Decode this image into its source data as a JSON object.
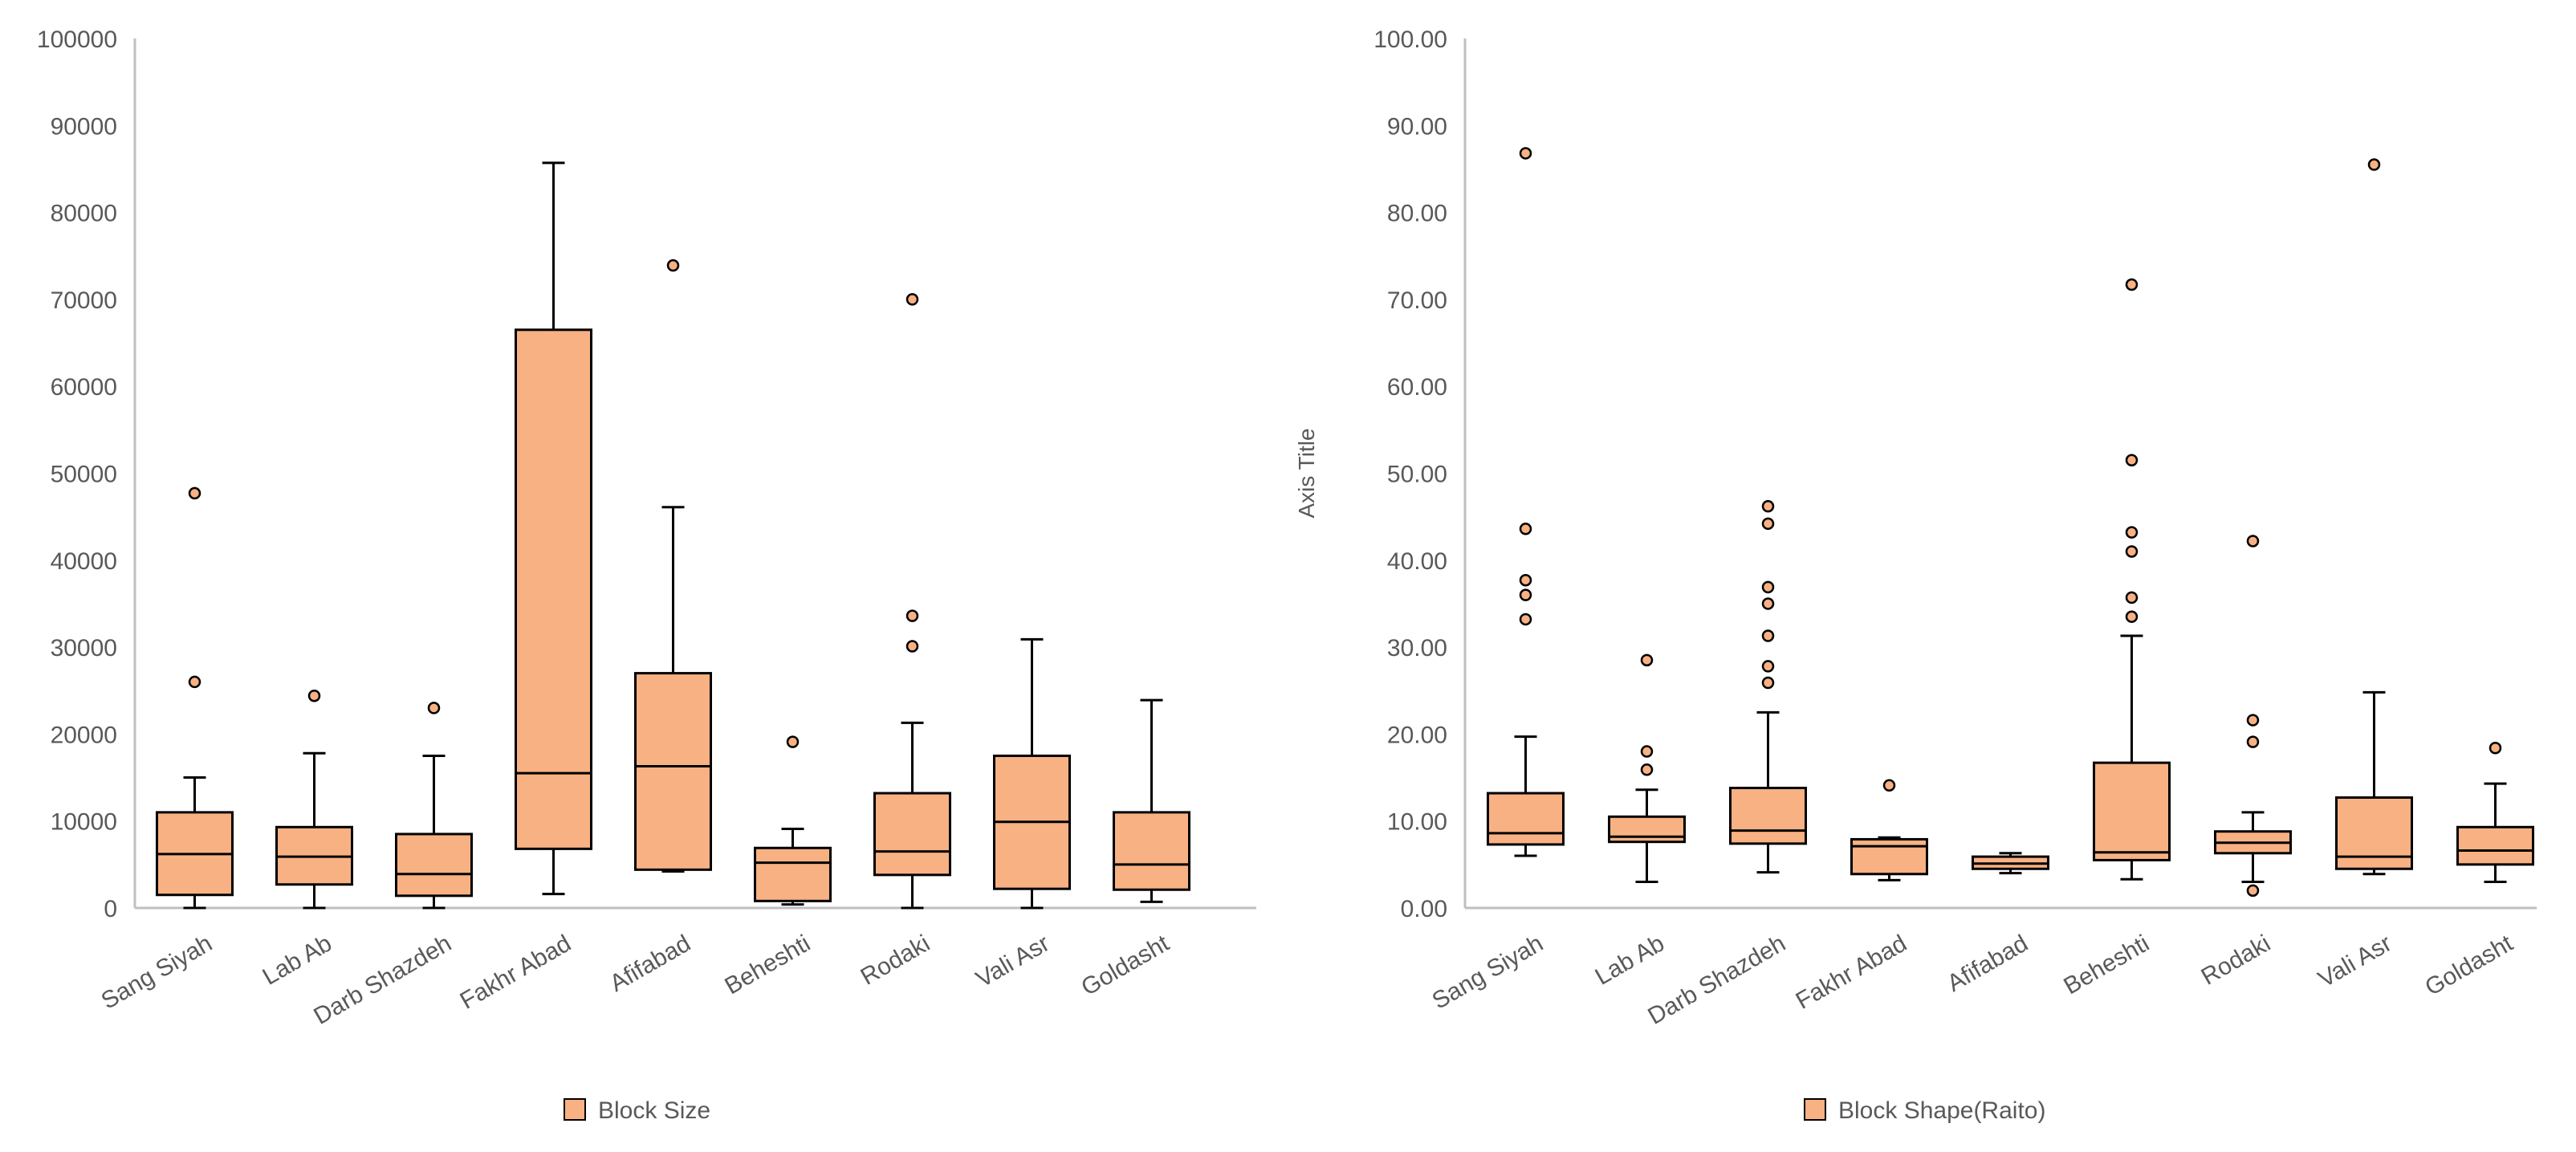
{
  "chart_data": [
    {
      "type": "box",
      "categories": [
        "Sang Siyah",
        "Lab Ab",
        "Darb Shazdeh",
        "Fakhr Abad",
        "Afifabad",
        "Beheshti",
        "Rodaki",
        "Vali Asr",
        "Goldasht"
      ],
      "yticks": [
        "0",
        "10000",
        "20000",
        "30000",
        "40000",
        "50000",
        "60000",
        "70000",
        "80000",
        "90000",
        "100000"
      ],
      "ylim": [
        0,
        100000
      ],
      "ylabel": "",
      "legend": {
        "position": "bottom",
        "entries": [
          "Block Size"
        ]
      },
      "series": [
        {
          "name": "Block Size",
          "color": "#F8B183",
          "boxes": [
            {
              "min": 0,
              "q1": 1500,
              "median": 6200,
              "q3": 11000,
              "max": 15000,
              "outliers": [
                26000,
                47700
              ]
            },
            {
              "min": 0,
              "q1": 2700,
              "median": 5900,
              "q3": 9300,
              "max": 17800,
              "outliers": [
                24400
              ]
            },
            {
              "min": 0,
              "q1": 1400,
              "median": 3900,
              "q3": 8500,
              "max": 17500,
              "outliers": [
                23000
              ]
            },
            {
              "min": 1600,
              "q1": 6800,
              "median": 15500,
              "q3": 66500,
              "max": 85700,
              "outliers": []
            },
            {
              "min": 4200,
              "q1": 4400,
              "median": 16300,
              "q3": 27000,
              "max": 46100,
              "outliers": [
                73900
              ]
            },
            {
              "min": 400,
              "q1": 800,
              "median": 5200,
              "q3": 6900,
              "max": 9100,
              "outliers": [
                19100
              ]
            },
            {
              "min": 0,
              "q1": 3800,
              "median": 6500,
              "q3": 13200,
              "max": 21300,
              "outliers": [
                30100,
                33600,
                70000
              ]
            },
            {
              "min": 0,
              "q1": 2200,
              "median": 9900,
              "q3": 17500,
              "max": 30900,
              "outliers": []
            },
            {
              "min": 700,
              "q1": 2100,
              "median": 5000,
              "q3": 11000,
              "max": 23900,
              "outliers": []
            }
          ]
        }
      ]
    },
    {
      "type": "box",
      "categories": [
        "Sang Siyah",
        "Lab Ab",
        "Darb Shazdeh",
        "Fakhr Abad",
        "Afifabad",
        "Beheshti",
        "Rodaki",
        "Vali Asr",
        "Goldasht"
      ],
      "yticks": [
        "0.00",
        "10.00",
        "20.00",
        "30.00",
        "40.00",
        "50.00",
        "60.00",
        "70.00",
        "80.00",
        "90.00",
        "100.00"
      ],
      "ylim": [
        0,
        100
      ],
      "ylabel": "Axis Title",
      "legend": {
        "position": "bottom",
        "entries": [
          "Block Shape(Raito)"
        ]
      },
      "series": [
        {
          "name": "Block Shape(Raito)",
          "color": "#F8B183",
          "boxes": [
            {
              "min": 6.0,
              "q1": 7.3,
              "median": 8.6,
              "q3": 13.2,
              "max": 19.7,
              "outliers": [
                33.2,
                36.0,
                37.7,
                43.6,
                86.8
              ]
            },
            {
              "min": 3.0,
              "q1": 7.6,
              "median": 8.2,
              "q3": 10.5,
              "max": 13.6,
              "outliers": [
                15.9,
                18.0,
                28.5
              ]
            },
            {
              "min": 4.1,
              "q1": 7.4,
              "median": 8.9,
              "q3": 13.8,
              "max": 22.5,
              "outliers": [
                25.9,
                27.8,
                31.3,
                35.0,
                36.9,
                44.2,
                46.2
              ]
            },
            {
              "min": 3.2,
              "q1": 3.9,
              "median": 7.1,
              "q3": 7.9,
              "max": 8.1,
              "outliers": [
                14.1
              ]
            },
            {
              "min": 4.0,
              "q1": 4.5,
              "median": 5.1,
              "q3": 5.9,
              "max": 6.3,
              "outliers": []
            },
            {
              "min": 3.3,
              "q1": 5.5,
              "median": 6.4,
              "q3": 16.7,
              "max": 31.3,
              "outliers": [
                33.5,
                35.7,
                41.0,
                43.2,
                51.5,
                71.7
              ]
            },
            {
              "min": 3.0,
              "q1": 6.3,
              "median": 7.5,
              "q3": 8.8,
              "max": 11.0,
              "outliers": [
                2.0,
                19.1,
                21.6,
                42.2
              ]
            },
            {
              "min": 3.9,
              "q1": 4.5,
              "median": 5.9,
              "q3": 12.7,
              "max": 24.8,
              "outliers": [
                85.5
              ]
            },
            {
              "min": 3.0,
              "q1": 5.0,
              "median": 6.6,
              "q3": 9.3,
              "max": 14.3,
              "outliers": [
                18.4
              ]
            }
          ]
        }
      ]
    }
  ]
}
